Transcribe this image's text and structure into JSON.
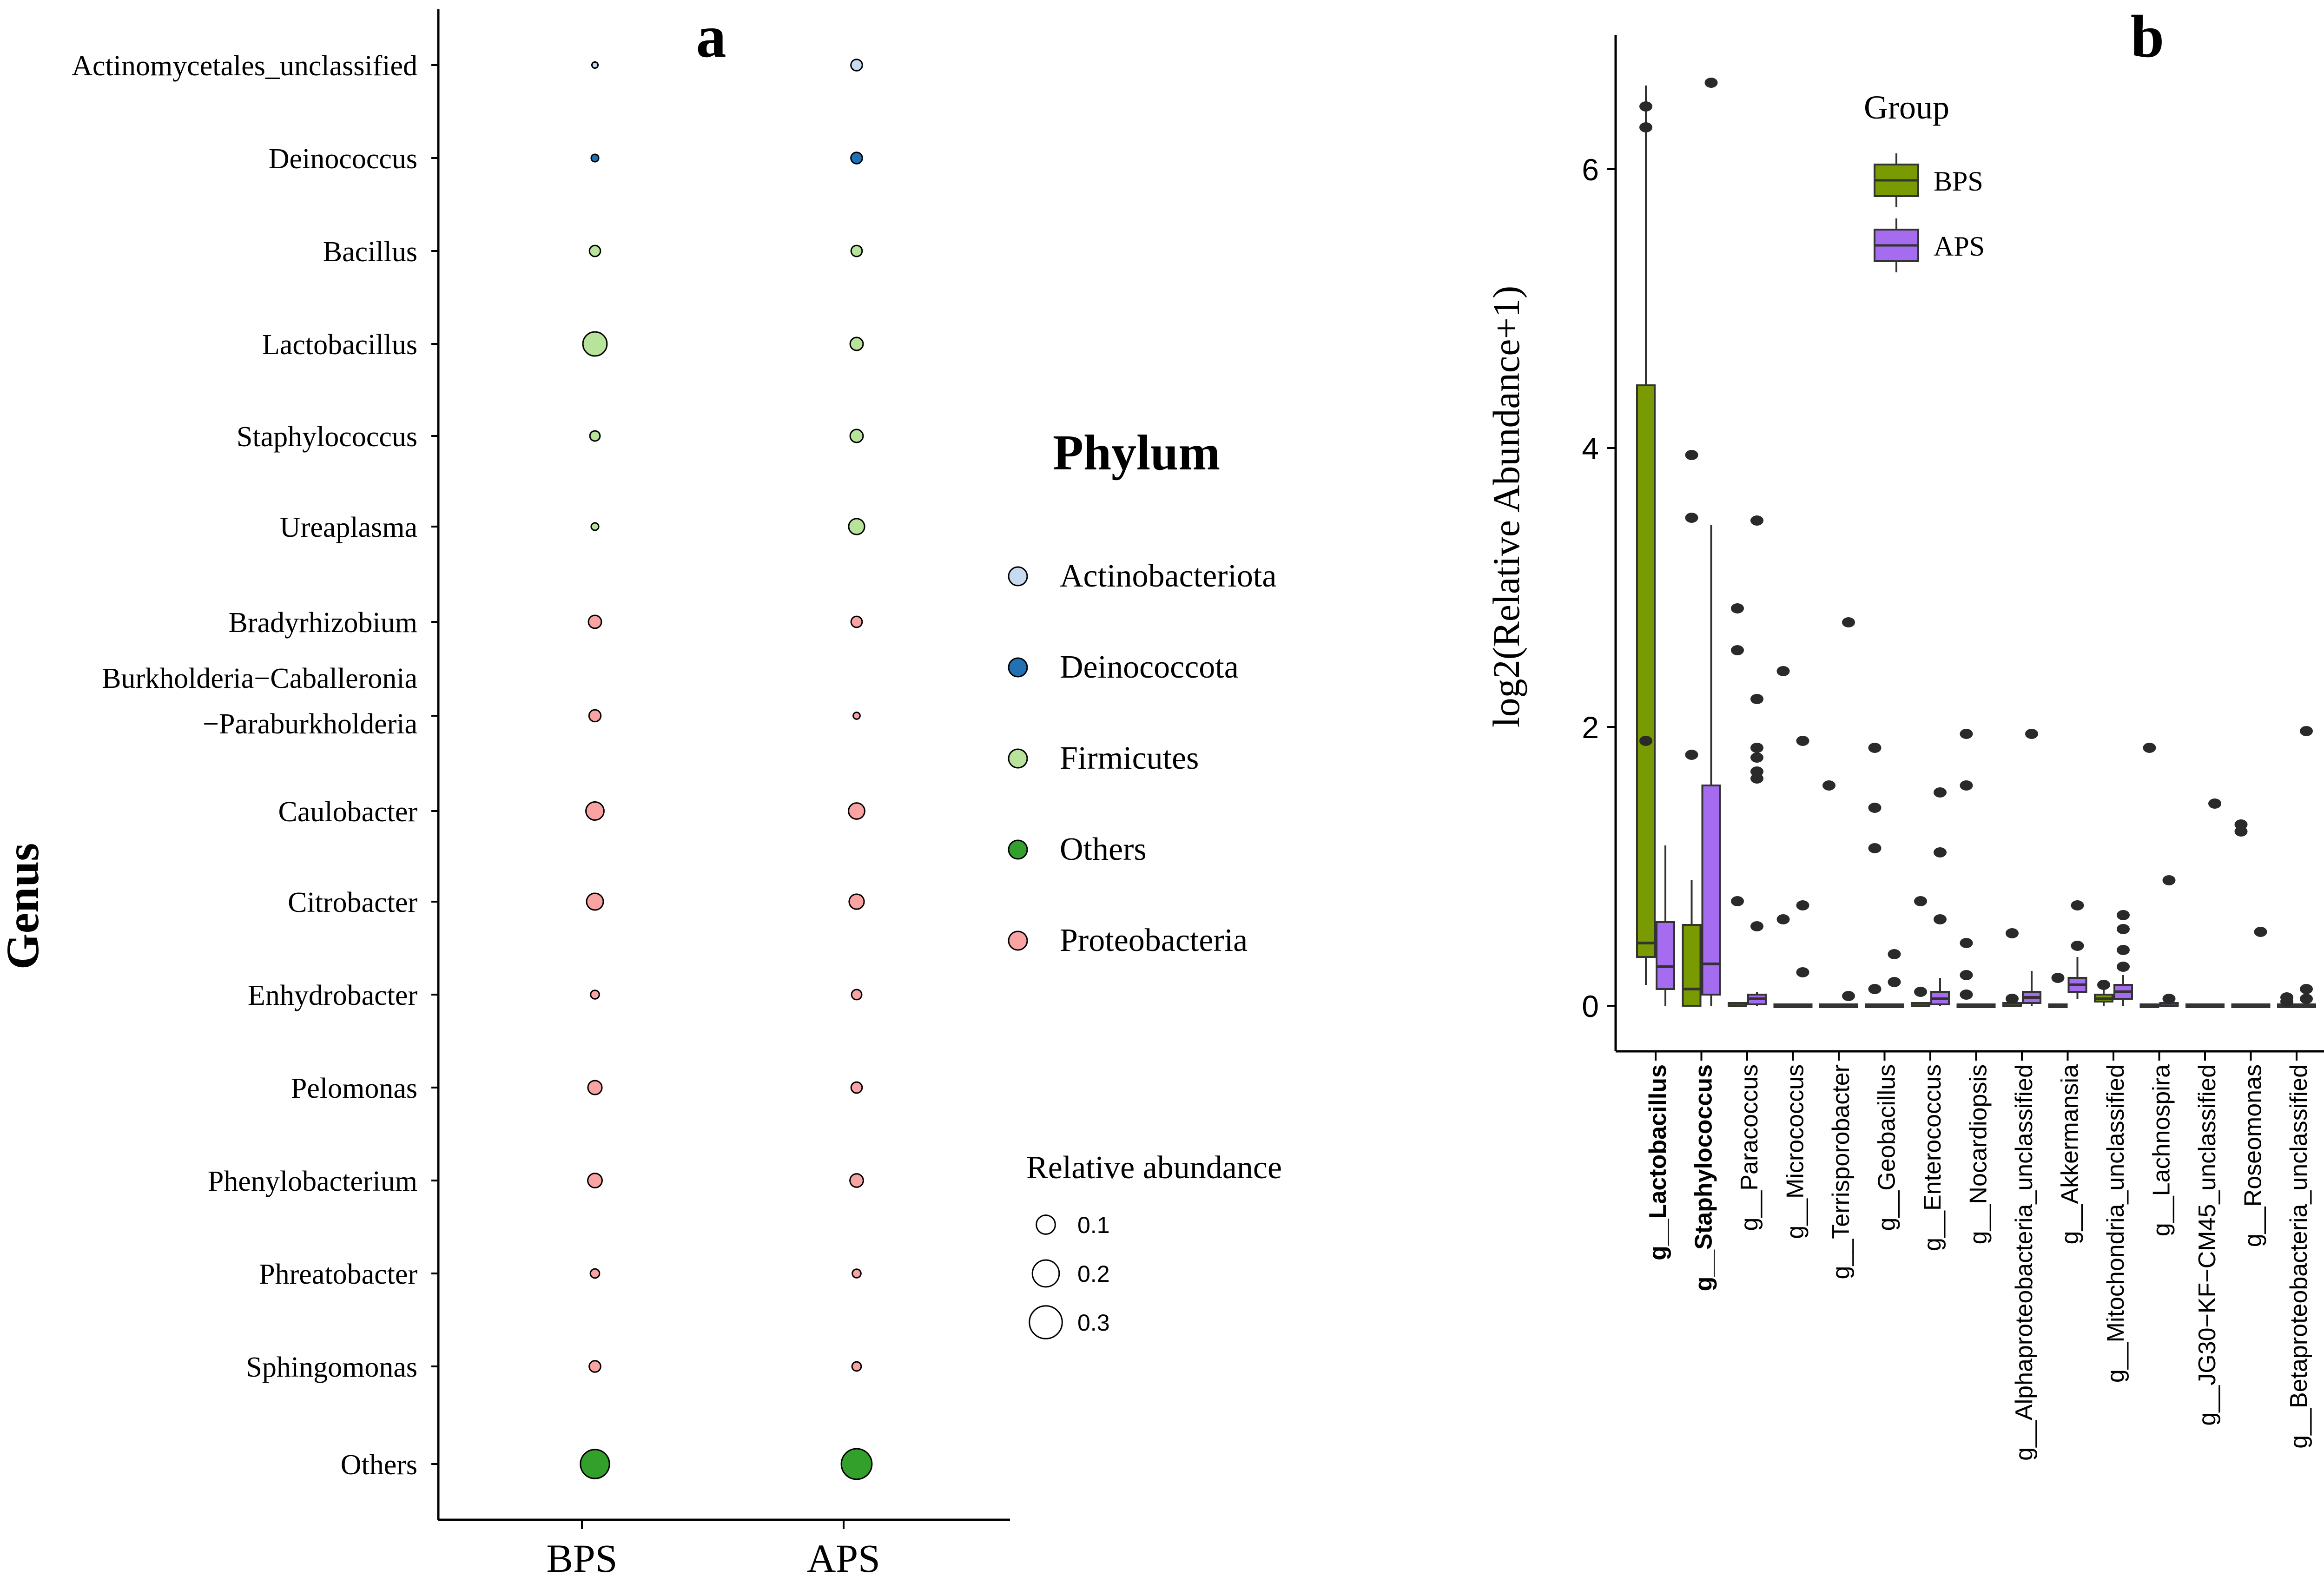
{
  "panel_a": {
    "label": "a",
    "chart_data": {
      "type": "scatter",
      "subtype": "bubble",
      "xlabel": "",
      "ylabel": "Genus",
      "groups": [
        "BPS",
        "APS"
      ],
      "genera": [
        {
          "name": "Actinomycetales_unclassified",
          "phylum": "Actinobacteriota",
          "values": [
            0.004,
            0.014
          ]
        },
        {
          "name": "Deinococcus",
          "phylum": "Deinococcota",
          "values": [
            0.006,
            0.014
          ]
        },
        {
          "name": "Bacillus",
          "phylum": "Firmicutes",
          "values": [
            0.013,
            0.013
          ]
        },
        {
          "name": "Lactobacillus",
          "phylum": "Firmicutes",
          "values": [
            0.062,
            0.018
          ]
        },
        {
          "name": "Staphylococcus",
          "phylum": "Firmicutes",
          "values": [
            0.011,
            0.018
          ]
        },
        {
          "name": "Ureaplasma",
          "phylum": "Firmicutes",
          "values": [
            0.006,
            0.027
          ]
        },
        {
          "name": "Bradyrhizobium",
          "phylum": "Proteobacteria",
          "values": [
            0.018,
            0.013
          ]
        },
        {
          "name": "Burkholderia−Caballeronia\n−Paraburkholderia",
          "phylum": "Proteobacteria",
          "values": [
            0.015,
            0.005
          ]
        },
        {
          "name": "Caulobacter",
          "phylum": "Proteobacteria",
          "values": [
            0.035,
            0.028
          ]
        },
        {
          "name": "Citrobacter",
          "phylum": "Proteobacteria",
          "values": [
            0.03,
            0.024
          ]
        },
        {
          "name": "Enhydrobacter",
          "phylum": "Proteobacteria",
          "values": [
            0.008,
            0.011
          ]
        },
        {
          "name": "Pelomonas",
          "phylum": "Proteobacteria",
          "values": [
            0.021,
            0.013
          ]
        },
        {
          "name": "Phenylobacterium",
          "phylum": "Proteobacteria",
          "values": [
            0.022,
            0.019
          ]
        },
        {
          "name": "Phreatobacter",
          "phylum": "Proteobacteria",
          "values": [
            0.009,
            0.008
          ]
        },
        {
          "name": "Sphingomonas",
          "phylum": "Proteobacteria",
          "values": [
            0.014,
            0.009
          ]
        },
        {
          "name": "Others",
          "phylum": "Others",
          "values": [
            0.09,
            0.1
          ]
        }
      ],
      "phylum_legend": {
        "title": "Phylum",
        "items": [
          {
            "name": "Actinobacteriota",
            "color": "#c6dbef"
          },
          {
            "name": "Deinococcota",
            "color": "#2171b5"
          },
          {
            "name": "Firmicutes",
            "color": "#b8e39a"
          },
          {
            "name": "Others",
            "color": "#33a02c"
          },
          {
            "name": "Proteobacteria",
            "color": "#f9a3a3"
          }
        ]
      },
      "size_legend": {
        "title": "Relative abundance",
        "items": [
          {
            "label": "0.1",
            "value": 0.1
          },
          {
            "label": "0.2",
            "value": 0.2
          },
          {
            "label": "0.3",
            "value": 0.3
          }
        ]
      }
    }
  },
  "panel_b": {
    "label": "b",
    "chart_data": {
      "type": "box",
      "xlabel": "",
      "ylabel": "log2(Relative Abundance+1)",
      "ylim": [
        -0.1,
        6.9
      ],
      "yticks": [
        0,
        2,
        4,
        6
      ],
      "legend": {
        "title": "Group",
        "items": [
          {
            "name": "BPS",
            "color": "#7a9a01"
          },
          {
            "name": "APS",
            "color": "#a56cf0"
          }
        ]
      },
      "categories": [
        {
          "label": "g__Lactobacillus",
          "bold": true
        },
        {
          "label": "g__Staphylococcus",
          "bold": true
        },
        {
          "label": "g__Paracoccus",
          "bold": false
        },
        {
          "label": "g__Micrococcus",
          "bold": false
        },
        {
          "label": "g__Terrisporobacter",
          "bold": false
        },
        {
          "label": "g__Geobacillus",
          "bold": false
        },
        {
          "label": "g__Enterococcus",
          "bold": false
        },
        {
          "label": "g__Nocardiopsis",
          "bold": false
        },
        {
          "label": "g__Alphaproteobacteria_unclassified",
          "bold": false
        },
        {
          "label": "g__Akkermansia",
          "bold": false
        },
        {
          "label": "g__Mitochondria_unclassified",
          "bold": false
        },
        {
          "label": "g__Lachnospira",
          "bold": false
        },
        {
          "label": "g__JG30−KF−CM45_unclassified",
          "bold": false
        },
        {
          "label": "g__Roseomonas",
          "bold": false
        },
        {
          "label": "g__Betaproteobacteria_unclassified",
          "bold": false
        }
      ],
      "series": [
        {
          "name": "BPS",
          "boxes": [
            {
              "q1": 0.35,
              "median": 0.45,
              "q3": 4.45,
              "whislo": 0.15,
              "whishi": 6.6,
              "outliers": [
                6.45,
                6.3,
                1.9
              ]
            },
            {
              "q1": 0.0,
              "median": 0.12,
              "q3": 0.58,
              "whislo": 0.0,
              "whishi": 0.9,
              "outliers": [
                3.95,
                3.5,
                1.8
              ]
            },
            {
              "q1": 0.0,
              "median": 0.0,
              "q3": 0.02,
              "whislo": 0.0,
              "whishi": 0.02,
              "outliers": [
                2.85,
                2.55,
                0.75
              ]
            },
            {
              "q1": 0.0,
              "median": 0.0,
              "q3": 0.01,
              "whislo": 0.0,
              "whishi": 0.01,
              "outliers": [
                2.4,
                0.62
              ]
            },
            {
              "q1": 0.0,
              "median": 0.0,
              "q3": 0.01,
              "whislo": 0.0,
              "whishi": 0.01,
              "outliers": [
                1.58
              ]
            },
            {
              "q1": 0.0,
              "median": 0.0,
              "q3": 0.01,
              "whislo": 0.0,
              "whishi": 0.01,
              "outliers": [
                1.85,
                1.42,
                1.13,
                0.12
              ]
            },
            {
              "q1": 0.0,
              "median": 0.0,
              "q3": 0.02,
              "whislo": 0.0,
              "whishi": 0.02,
              "outliers": [
                0.75,
                0.1
              ]
            },
            {
              "q1": 0.0,
              "median": 0.0,
              "q3": 0.01,
              "whislo": 0.0,
              "whishi": 0.01,
              "outliers": [
                1.95,
                1.58,
                0.45,
                0.22,
                0.08
              ]
            },
            {
              "q1": 0.0,
              "median": 0.0,
              "q3": 0.02,
              "whislo": 0.0,
              "whishi": 0.02,
              "outliers": [
                0.52,
                0.05
              ]
            },
            {
              "q1": 0.0,
              "median": 0.0,
              "q3": 0.01,
              "whislo": 0.0,
              "whishi": 0.01,
              "outliers": [
                0.2
              ]
            },
            {
              "q1": 0.03,
              "median": 0.05,
              "q3": 0.08,
              "whislo": 0.0,
              "whishi": 0.12,
              "outliers": [
                0.15
              ]
            },
            {
              "q1": 0.0,
              "median": 0.0,
              "q3": 0.01,
              "whislo": 0.0,
              "whishi": 0.01,
              "outliers": [
                1.85
              ]
            },
            {
              "q1": 0.0,
              "median": 0.0,
              "q3": 0.01,
              "whislo": 0.0,
              "whishi": 0.01,
              "outliers": []
            },
            {
              "q1": 0.0,
              "median": 0.0,
              "q3": 0.01,
              "whislo": 0.0,
              "whishi": 0.01,
              "outliers": [
                1.3,
                1.25
              ]
            },
            {
              "q1": 0.0,
              "median": 0.0,
              "q3": 0.01,
              "whislo": 0.0,
              "whishi": 0.01,
              "outliers": [
                0.06,
                0.03
              ]
            }
          ]
        },
        {
          "name": "APS",
          "boxes": [
            {
              "q1": 0.12,
              "median": 0.28,
              "q3": 0.6,
              "whislo": 0.0,
              "whishi": 1.15,
              "outliers": []
            },
            {
              "q1": 0.08,
              "median": 0.3,
              "q3": 1.58,
              "whislo": 0.0,
              "whishi": 3.45,
              "outliers": [
                6.62
              ]
            },
            {
              "q1": 0.01,
              "median": 0.05,
              "q3": 0.08,
              "whislo": 0.0,
              "whishi": 0.1,
              "outliers": [
                3.48,
                2.2,
                1.85,
                1.78,
                1.68,
                1.63,
                0.57
              ]
            },
            {
              "q1": 0.0,
              "median": 0.0,
              "q3": 0.01,
              "whislo": 0.0,
              "whishi": 0.01,
              "outliers": [
                1.9,
                0.72,
                0.24
              ]
            },
            {
              "q1": 0.0,
              "median": 0.0,
              "q3": 0.01,
              "whislo": 0.0,
              "whishi": 0.01,
              "outliers": [
                2.75,
                0.07
              ]
            },
            {
              "q1": 0.0,
              "median": 0.0,
              "q3": 0.01,
              "whislo": 0.0,
              "whishi": 0.01,
              "outliers": [
                0.37,
                0.17
              ]
            },
            {
              "q1": 0.01,
              "median": 0.05,
              "q3": 0.1,
              "whislo": 0.0,
              "whishi": 0.2,
              "outliers": [
                1.53,
                1.1,
                0.62
              ]
            },
            {
              "q1": 0.0,
              "median": 0.0,
              "q3": 0.01,
              "whislo": 0.0,
              "whishi": 0.01,
              "outliers": []
            },
            {
              "q1": 0.02,
              "median": 0.06,
              "q3": 0.1,
              "whislo": 0.0,
              "whishi": 0.25,
              "outliers": [
                1.95
              ]
            },
            {
              "q1": 0.1,
              "median": 0.15,
              "q3": 0.2,
              "whislo": 0.05,
              "whishi": 0.35,
              "outliers": [
                0.72,
                0.43
              ]
            },
            {
              "q1": 0.05,
              "median": 0.1,
              "q3": 0.15,
              "whislo": 0.0,
              "whishi": 0.22,
              "outliers": [
                0.65,
                0.55,
                0.4,
                0.28
              ]
            },
            {
              "q1": 0.0,
              "median": 0.0,
              "q3": 0.02,
              "whislo": 0.0,
              "whishi": 0.02,
              "outliers": [
                0.9,
                0.05
              ]
            },
            {
              "q1": 0.0,
              "median": 0.0,
              "q3": 0.01,
              "whislo": 0.0,
              "whishi": 0.01,
              "outliers": [
                1.45
              ]
            },
            {
              "q1": 0.0,
              "median": 0.0,
              "q3": 0.01,
              "whislo": 0.0,
              "whishi": 0.01,
              "outliers": [
                0.53
              ]
            },
            {
              "q1": 0.0,
              "median": 0.0,
              "q3": 0.01,
              "whislo": 0.0,
              "whishi": 0.01,
              "outliers": [
                1.97,
                0.12,
                0.05
              ]
            }
          ]
        }
      ],
      "edge_outlier": {
        "value": 1.7
      }
    }
  }
}
